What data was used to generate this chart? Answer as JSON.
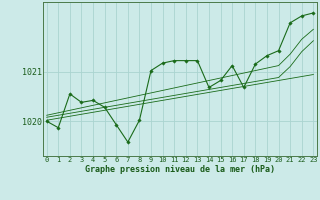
{
  "title": "Graphe pression niveau de la mer (hPa)",
  "background_color": "#cceae8",
  "grid_color": "#aad4d0",
  "line_color": "#1a6b1a",
  "axis_label_color": "#1a5c1a",
  "x_labels": [
    "0",
    "1",
    "2",
    "3",
    "4",
    "5",
    "6",
    "7",
    "8",
    "9",
    "10",
    "11",
    "12",
    "13",
    "14",
    "15",
    "16",
    "17",
    "18",
    "19",
    "20",
    "21",
    "22",
    "23"
  ],
  "yticks": [
    1020,
    1021
  ],
  "ylim": [
    1019.3,
    1022.4
  ],
  "xlim": [
    -0.3,
    23.3
  ],
  "series": {
    "main": [
      1020.0,
      1019.87,
      1020.55,
      1020.38,
      1020.42,
      1020.28,
      1019.93,
      1019.58,
      1020.02,
      1021.02,
      1021.17,
      1021.22,
      1021.22,
      1021.22,
      1020.68,
      1020.82,
      1021.12,
      1020.68,
      1021.15,
      1021.32,
      1021.42,
      1021.98,
      1022.12,
      1022.18
    ],
    "line1": [
      1020.02,
      1020.06,
      1020.1,
      1020.14,
      1020.18,
      1020.22,
      1020.26,
      1020.3,
      1020.34,
      1020.38,
      1020.42,
      1020.46,
      1020.5,
      1020.54,
      1020.58,
      1020.62,
      1020.66,
      1020.7,
      1020.74,
      1020.78,
      1020.82,
      1020.86,
      1020.9,
      1020.94
    ],
    "line2": [
      1020.08,
      1020.12,
      1020.16,
      1020.2,
      1020.24,
      1020.28,
      1020.32,
      1020.36,
      1020.4,
      1020.44,
      1020.48,
      1020.52,
      1020.56,
      1020.6,
      1020.64,
      1020.68,
      1020.72,
      1020.76,
      1020.8,
      1020.84,
      1020.88,
      1021.1,
      1021.4,
      1021.62
    ],
    "line3": [
      1020.12,
      1020.17,
      1020.22,
      1020.27,
      1020.32,
      1020.37,
      1020.42,
      1020.47,
      1020.52,
      1020.57,
      1020.62,
      1020.67,
      1020.72,
      1020.77,
      1020.82,
      1020.87,
      1020.92,
      1020.97,
      1021.02,
      1021.07,
      1021.12,
      1021.35,
      1021.65,
      1021.85
    ]
  }
}
